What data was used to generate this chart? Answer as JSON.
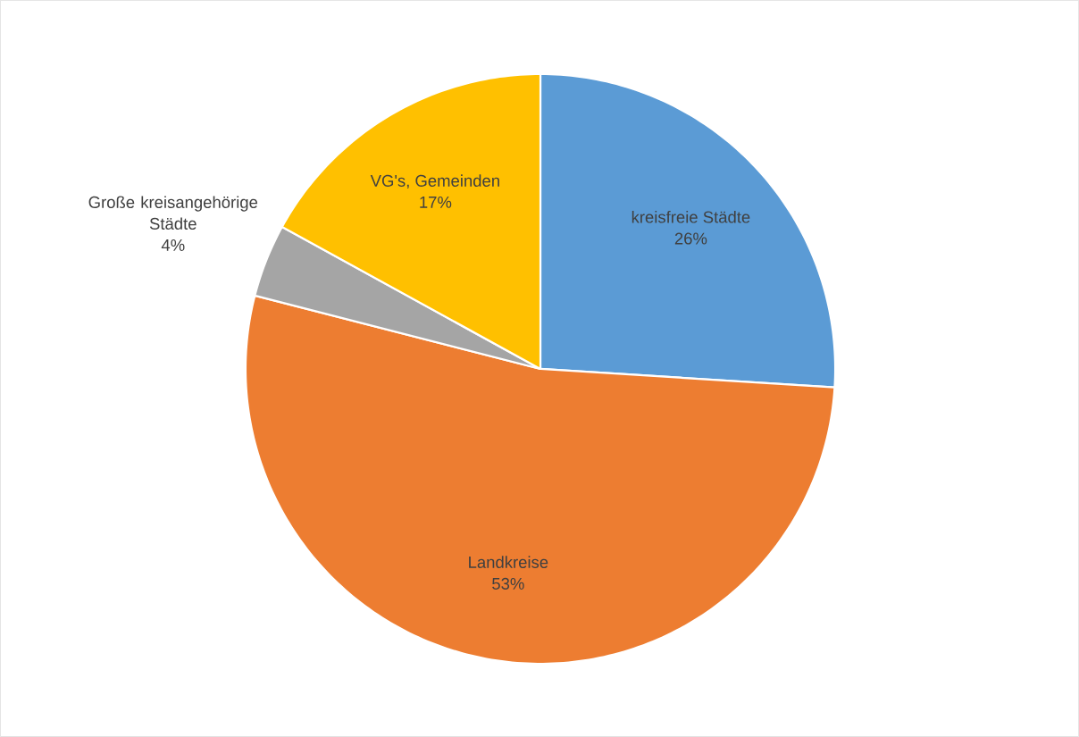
{
  "chart_data": {
    "type": "pie",
    "categories": [
      "kreisfreie Städte",
      "Landkreise",
      "Große kreisangehörige Städte",
      "VG's, Gemeinden"
    ],
    "values": [
      26,
      53,
      4,
      17
    ],
    "value_labels": [
      "26%",
      "53%",
      "4%",
      "17%"
    ],
    "colors": [
      "#5b9bd5",
      "#ed7d31",
      "#a5a5a5",
      "#ffc000"
    ]
  }
}
